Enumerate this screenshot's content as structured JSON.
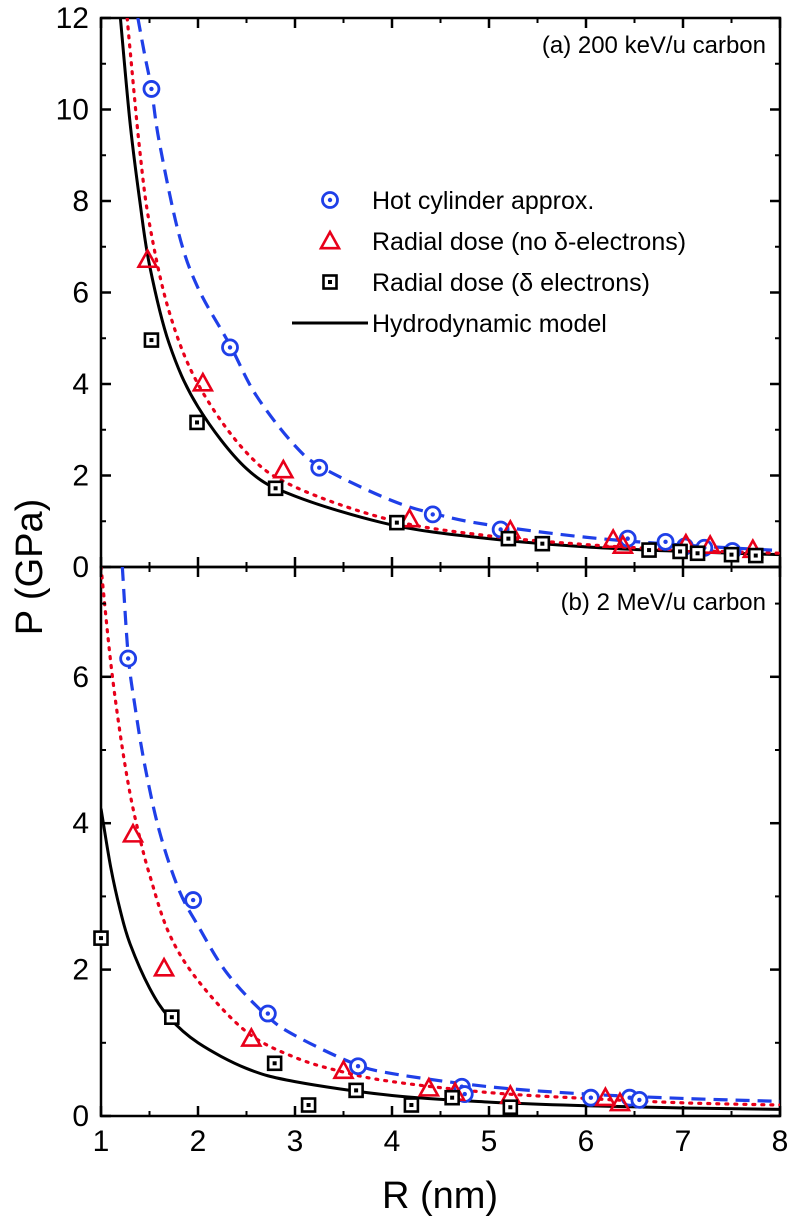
{
  "chart_data": [
    {
      "type": "scatter",
      "panel_label": "(a) 200 keV/u carbon",
      "xlabel": "R (nm)",
      "ylabel": "P (GPa)",
      "xlim": [
        1,
        8
      ],
      "ylim": [
        0,
        12
      ],
      "xticks": [
        1,
        2,
        3,
        4,
        5,
        6,
        7,
        8
      ],
      "yticks": [
        0,
        2,
        4,
        6,
        8,
        10,
        12
      ],
      "grid": false,
      "legend_position": "upper-right",
      "series": [
        {
          "name": "Hot cylinder approx.",
          "kind": "markers",
          "marker": "circle-dot",
          "color": "#1f3fe8",
          "x": [
            1.52,
            2.33,
            3.25,
            4.42,
            5.12,
            6.43,
            6.82,
            7.02,
            7.22,
            7.51
          ],
          "y": [
            10.45,
            4.8,
            2.17,
            1.15,
            0.82,
            0.62,
            0.55,
            0.45,
            0.42,
            0.35
          ]
        },
        {
          "name": "Radial dose (no δ-electrons)",
          "kind": "markers",
          "marker": "triangle",
          "color": "#e8001a",
          "x": [
            1.48,
            2.05,
            2.88,
            4.18,
            5.22,
            6.28,
            6.38,
            7.03,
            7.28,
            7.72
          ],
          "y": [
            6.72,
            4.02,
            2.12,
            1.05,
            0.8,
            0.6,
            0.47,
            0.5,
            0.47,
            0.38
          ]
        },
        {
          "name": "Radial dose (δ electrons)",
          "kind": "markers",
          "marker": "square-dot",
          "color": "#000000",
          "x": [
            1.52,
            1.99,
            2.8,
            4.05,
            5.2,
            5.55,
            6.65,
            6.97,
            7.15,
            7.5,
            7.75
          ],
          "y": [
            4.96,
            3.16,
            1.72,
            0.97,
            0.62,
            0.51,
            0.37,
            0.34,
            0.3,
            0.27,
            0.25
          ]
        },
        {
          "name": "Hydrodynamic model",
          "kind": "line",
          "style": "solid",
          "color": "#000000",
          "x": [
            1.2,
            1.3,
            1.4,
            1.5,
            1.7,
            2.0,
            2.5,
            3.0,
            4.0,
            5.0,
            6.0,
            7.0,
            8.0
          ],
          "y": [
            12.0,
            9.7,
            8.0,
            6.6,
            4.9,
            3.5,
            2.15,
            1.55,
            0.92,
            0.62,
            0.44,
            0.34,
            0.27
          ]
        },
        {
          "name": "",
          "kind": "line",
          "style": "dotted",
          "color": "#e8001a",
          "x": [
            1.27,
            1.3,
            1.4,
            1.5,
            1.7,
            2.0,
            2.5,
            3.0,
            4.0,
            5.0,
            6.0,
            7.0,
            8.0
          ],
          "y": [
            12.0,
            11.3,
            9.1,
            7.5,
            5.6,
            4.0,
            2.5,
            1.75,
            1.02,
            0.68,
            0.49,
            0.37,
            0.3
          ]
        },
        {
          "name": "",
          "kind": "line",
          "style": "dashed",
          "color": "#1f3fe8",
          "x": [
            1.38,
            1.45,
            1.52,
            1.6,
            1.8,
            2.0,
            2.33,
            2.6,
            3.0,
            3.3,
            4.0,
            4.5,
            5.0,
            6.0,
            7.0,
            8.0
          ],
          "y": [
            12.0,
            11.2,
            10.45,
            9.3,
            7.3,
            6.1,
            4.85,
            3.75,
            2.65,
            2.15,
            1.45,
            1.13,
            0.92,
            0.65,
            0.48,
            0.36
          ]
        }
      ]
    },
    {
      "type": "scatter",
      "panel_label": "(b) 2 MeV/u carbon",
      "xlabel": "R (nm)",
      "ylabel": "P (GPa)",
      "xlim": [
        1,
        8
      ],
      "ylim": [
        0,
        7.5
      ],
      "xticks": [
        1,
        2,
        3,
        4,
        5,
        6,
        7,
        8
      ],
      "yticks": [
        0,
        2,
        4,
        6
      ],
      "grid": false,
      "series": [
        {
          "name": "Hot cylinder approx.",
          "kind": "markers",
          "marker": "circle-dot",
          "color": "#1f3fe8",
          "x": [
            1.28,
            1.95,
            2.72,
            3.65,
            4.72,
            4.75,
            6.05,
            6.45,
            6.55
          ],
          "y": [
            6.25,
            2.95,
            1.4,
            0.68,
            0.4,
            0.3,
            0.25,
            0.25,
            0.22
          ]
        },
        {
          "name": "Radial dose (no δ-electrons)",
          "kind": "markers",
          "marker": "triangle",
          "color": "#e8001a",
          "x": [
            1.33,
            1.65,
            2.55,
            3.5,
            4.38,
            4.65,
            5.22,
            6.2,
            6.35
          ],
          "y": [
            3.85,
            2.02,
            1.06,
            0.62,
            0.38,
            0.32,
            0.28,
            0.25,
            0.18
          ]
        },
        {
          "name": "Radial dose (δ electrons)",
          "kind": "markers",
          "marker": "square-dot",
          "color": "#000000",
          "x": [
            1.0,
            1.73,
            2.79,
            3.14,
            3.63,
            4.2,
            4.62,
            5.22
          ],
          "y": [
            2.43,
            1.35,
            0.72,
            0.15,
            0.35,
            0.15,
            0.25,
            0.12
          ]
        },
        {
          "name": "Hydrodynamic model",
          "kind": "line",
          "style": "solid",
          "color": "#000000",
          "x": [
            1.0,
            1.1,
            1.2,
            1.3,
            1.5,
            1.7,
            2.0,
            2.5,
            3.0,
            4.0,
            5.0,
            6.0,
            7.0,
            8.0
          ],
          "y": [
            4.2,
            3.4,
            2.8,
            2.35,
            1.75,
            1.35,
            1.0,
            0.65,
            0.47,
            0.28,
            0.19,
            0.14,
            0.11,
            0.09
          ]
        },
        {
          "name": "",
          "kind": "line",
          "style": "dotted",
          "color": "#e8001a",
          "x": [
            1.0,
            1.1,
            1.2,
            1.3,
            1.4,
            1.5,
            1.7,
            2.0,
            2.5,
            3.0,
            3.5,
            4.0,
            5.0,
            6.0,
            7.0,
            8.0
          ],
          "y": [
            7.5,
            6.2,
            5.2,
            4.4,
            3.8,
            3.3,
            2.5,
            1.85,
            1.15,
            0.8,
            0.6,
            0.47,
            0.32,
            0.24,
            0.18,
            0.15
          ]
        },
        {
          "name": "",
          "kind": "line",
          "style": "dashed",
          "color": "#1f3fe8",
          "x": [
            1.22,
            1.28,
            1.35,
            1.45,
            1.6,
            1.8,
            2.0,
            2.3,
            2.7,
            3.0,
            3.6,
            4.0,
            5.0,
            6.0,
            7.0,
            8.0
          ],
          "y": [
            7.5,
            6.3,
            5.6,
            4.8,
            3.9,
            3.1,
            2.6,
            1.95,
            1.38,
            1.1,
            0.72,
            0.58,
            0.4,
            0.3,
            0.24,
            0.2
          ]
        }
      ]
    }
  ]
}
